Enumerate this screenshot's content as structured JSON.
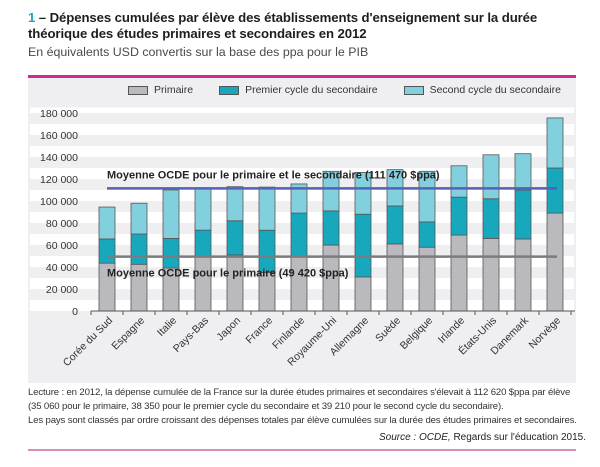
{
  "header": {
    "number": "1",
    "title": " – Dépenses cumulées par élève des établissements d'enseignement sur la durée théorique des études primaires et secondaires en 2012",
    "subtitle": "En équivalents USD convertis sur la base des ppa pour le PIB"
  },
  "colors": {
    "primaire": "#b9b9be",
    "premier_cycle": "#17a8bd",
    "second_cycle": "#82d0de",
    "avg_total_line": "#5461b5",
    "avg_primary_line": "#7c7c7c",
    "accent": "#d22a92"
  },
  "chart_data": {
    "type": "bar",
    "stacked": true,
    "title": "Dépenses cumulées par élève des établissements d'enseignement sur la durée théorique des études primaires et secondaires en 2012",
    "subtitle": "En équivalents USD convertis sur la base des ppa pour le PIB",
    "xlabel": "",
    "ylabel": "",
    "ylim": [
      0,
      180000
    ],
    "yticks": [
      0,
      20000,
      40000,
      60000,
      80000,
      100000,
      120000,
      140000,
      160000,
      180000
    ],
    "ytick_labels": [
      "0",
      "20 000",
      "40 000",
      "60 000",
      "80 000",
      "100 000",
      "120 000",
      "140 000",
      "160 000",
      "180 000"
    ],
    "grid": "alternating horizontal bands",
    "legend_position": "top",
    "categories": [
      "Corée du Sud",
      "Espagne",
      "Italie",
      "Pays-Bas",
      "Japon",
      "France",
      "Finlande",
      "Royaume-Uni",
      "Allemagne",
      "Suède",
      "Belgique",
      "Irlande",
      "États-Unis",
      "Danemark",
      "Norvège"
    ],
    "series": [
      {
        "name": "Primaire",
        "values": [
          43500,
          42500,
          39000,
          49000,
          51000,
          35060,
          49000,
          60000,
          31000,
          61000,
          58000,
          69000,
          66000,
          65500,
          89000
        ]
      },
      {
        "name": "Premier cycle du secondaire",
        "values": [
          22000,
          27500,
          27000,
          24500,
          31000,
          38350,
          40000,
          31000,
          57000,
          34500,
          23000,
          34500,
          36000,
          44500,
          41000
        ]
      },
      {
        "name": "Second cycle du secondaire",
        "values": [
          29000,
          28000,
          44000,
          38500,
          31000,
          39210,
          26500,
          36000,
          38000,
          33000,
          46000,
          28500,
          40000,
          33000,
          45500
        ]
      }
    ],
    "reference_lines": [
      {
        "name": "avg_total",
        "label": "Moyenne  OCDE pour le primaire et le secondaire (111 470 $ppa)",
        "value": 111470
      },
      {
        "name": "avg_primary",
        "label": "Moyenne  OCDE pour le primaire (49 420 $ppa)",
        "value": 49420
      }
    ]
  },
  "notes": {
    "line1": "Lecture : en 2012, la dépense cumulée de la France sur la durée études primaires et secondaires s'élevait à 112 620 $ppa par élève",
    "line2": "(35 060 pour le primaire, 38 350 pour le premier cycle du secondaire et  39 210 pour le second cycle du secondaire).",
    "line3": "Les pays sont classés par ordre croissant des dépenses totales par élève cumulées sur la durée des études primaires et secondaires.",
    "source_label": "Source : OCDE,",
    "source_text": " Regards sur l'éducation 2015."
  }
}
